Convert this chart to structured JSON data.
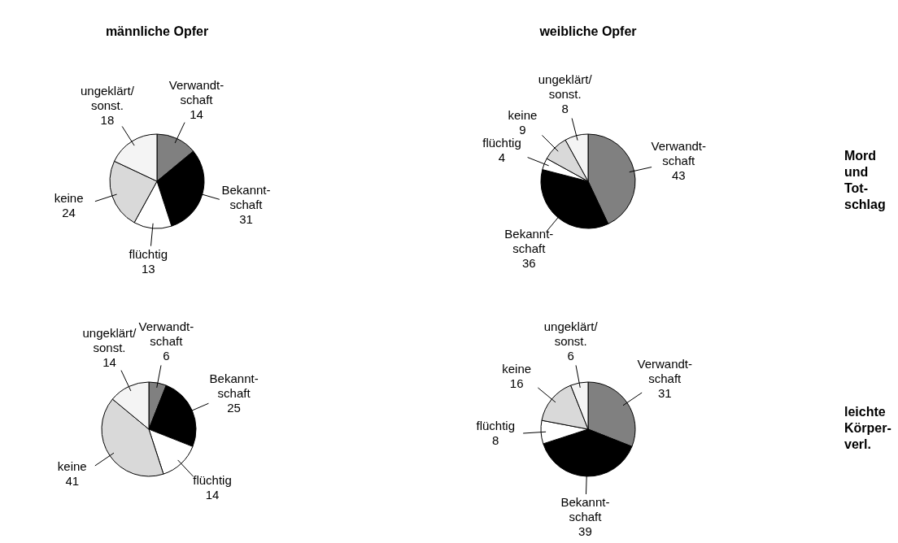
{
  "chart_data": [
    {
      "type": "pie",
      "title": "männliche Opfer",
      "categories": [
        "Verwandt-\nschaft",
        "Bekannt-\nschaft",
        "flüchtig",
        "keine",
        "ungeklärt/\nsonst."
      ],
      "values": [
        14,
        31,
        13,
        24,
        18
      ],
      "colors": [
        "#808080",
        "#000000",
        "#ffffff",
        "#d9d9d9",
        "#f4f4f4"
      ],
      "data_labels": true
    },
    {
      "type": "pie",
      "title": "weibliche Opfer",
      "categories": [
        "Verwandt-\nschaft",
        "Bekannt-\nschaft",
        "flüchtig",
        "keine",
        "ungeklärt/\nsonst."
      ],
      "values": [
        43,
        36,
        4,
        9,
        8
      ],
      "colors": [
        "#808080",
        "#000000",
        "#ffffff",
        "#d9d9d9",
        "#f4f4f4"
      ],
      "data_labels": true,
      "annotations": [
        "Mord\nund\nTot-\nschlag"
      ]
    },
    {
      "type": "pie",
      "categories": [
        "Verwandt-\nschaft",
        "Bekannt-\nschaft",
        "flüchtig",
        "keine",
        "ungeklärt/\nsonst."
      ],
      "values": [
        6,
        25,
        14,
        41,
        14
      ],
      "colors": [
        "#808080",
        "#000000",
        "#ffffff",
        "#d9d9d9",
        "#f4f4f4"
      ],
      "data_labels": true
    },
    {
      "type": "pie",
      "categories": [
        "Verwandt-\nschaft",
        "Bekannt-\nschaft",
        "flüchtig",
        "keine",
        "ungeklärt/\nsonst."
      ],
      "values": [
        31,
        39,
        8,
        16,
        6
      ],
      "colors": [
        "#808080",
        "#000000",
        "#ffffff",
        "#d9d9d9",
        "#f4f4f4"
      ],
      "data_labels": true,
      "annotations": [
        "leichte\nKörper-\nverl."
      ]
    }
  ]
}
